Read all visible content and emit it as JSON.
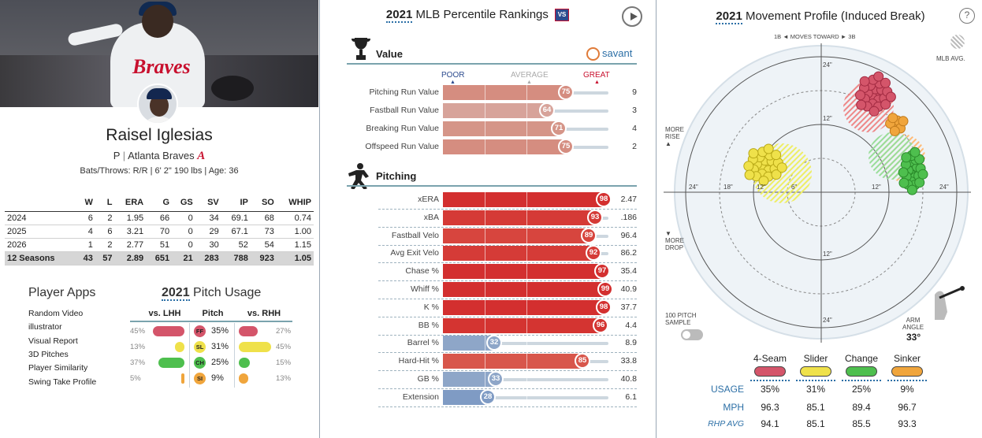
{
  "player": {
    "name": "Raisel Iglesias",
    "position": "P",
    "sep": "|",
    "team": "Atlanta Braves",
    "team_logo_text": "A",
    "photo_wordmark": "Braves",
    "bio": "Bats/Throws: R/R | 6' 2\" 190 lbs | Age: 36"
  },
  "stats_table": {
    "headers": [
      "",
      "W",
      "L",
      "ERA",
      "G",
      "GS",
      "SV",
      "IP",
      "SO",
      "WHIP"
    ],
    "rows": [
      [
        "2024",
        "6",
        "2",
        "1.95",
        "66",
        "0",
        "34",
        "69.1",
        "68",
        "0.74"
      ],
      [
        "2025",
        "4",
        "6",
        "3.21",
        "70",
        "0",
        "29",
        "67.1",
        "73",
        "1.00"
      ],
      [
        "2026",
        "1",
        "2",
        "2.77",
        "51",
        "0",
        "30",
        "52",
        "54",
        "1.15"
      ]
    ],
    "total": [
      "12 Seasons",
      "43",
      "57",
      "2.89",
      "651",
      "21",
      "283",
      "788",
      "923",
      "1.05"
    ]
  },
  "player_apps": {
    "title": "Player Apps",
    "items": [
      "Random Video",
      "illustrator",
      "Visual Report",
      "3D Pitches",
      "Player Similarity",
      "Swing Take Profile"
    ]
  },
  "pitch_usage": {
    "year": "2021",
    "title": "Pitch Usage",
    "col_lhh": "vs. LHH",
    "col_pitch": "Pitch",
    "col_rhh": "vs. RHH",
    "rows": [
      {
        "code": "FF",
        "color": "#d4556a",
        "lhh_label": "45%",
        "lhh": 45,
        "all_label": "35%",
        "rhh_label": "27%",
        "rhh": 27
      },
      {
        "code": "SL",
        "color": "#efe14a",
        "lhh_label": "13%",
        "lhh": 13,
        "all_label": "31%",
        "rhh_label": "45%",
        "rhh": 45
      },
      {
        "code": "CH",
        "color": "#4ebf4e",
        "lhh_label": "37%",
        "lhh": 37,
        "all_label": "25%",
        "rhh_label": "15%",
        "rhh": 15
      },
      {
        "code": "SI",
        "color": "#f0a53c",
        "lhh_label": "5%",
        "lhh": 5,
        "all_label": "9%",
        "rhh_label": "13%",
        "rhh": 13
      }
    ]
  },
  "rankings": {
    "year": "2021",
    "title": "MLB Percentile Rankings",
    "scale": {
      "poor": "POOR",
      "average": "AVERAGE",
      "great": "GREAT"
    },
    "savant": "savant",
    "value_section": {
      "title": "Value",
      "rows": [
        {
          "label": "Pitching Run Value",
          "pct": 75,
          "value": "9",
          "color": "#d58d80"
        },
        {
          "label": "Fastball Run Value",
          "pct": 64,
          "value": "3",
          "color": "#d7a39a"
        },
        {
          "label": "Breaking Run Value",
          "pct": 71,
          "value": "4",
          "color": "#d59588"
        },
        {
          "label": "Offspeed Run Value",
          "pct": 75,
          "value": "2",
          "color": "#d58d80"
        }
      ]
    },
    "pitching_section": {
      "title": "Pitching",
      "rows": [
        {
          "label": "xERA",
          "pct": 98,
          "value": "2.47",
          "color": "#d32f2f"
        },
        {
          "label": "xBA",
          "pct": 93,
          "value": ".186",
          "color": "#d53a36"
        },
        {
          "label": "Fastball Velo",
          "pct": 89,
          "value": "96.4",
          "color": "#d7453e"
        },
        {
          "label": "Avg Exit Velo",
          "pct": 92,
          "value": "86.2",
          "color": "#d53b37"
        },
        {
          "label": "Chase %",
          "pct": 97,
          "value": "35.4",
          "color": "#d32f2f"
        },
        {
          "label": "Whiff %",
          "pct": 99,
          "value": "40.9",
          "color": "#d32f2f"
        },
        {
          "label": "K %",
          "pct": 98,
          "value": "37.7",
          "color": "#d32f2f"
        },
        {
          "label": "BB %",
          "pct": 96,
          "value": "4.4",
          "color": "#d43431"
        },
        {
          "label": "Barrel %",
          "pct": 32,
          "value": "8.9",
          "color": "#8ea6c8"
        },
        {
          "label": "Hard-Hit %",
          "pct": 85,
          "value": "33.8",
          "color": "#d8564b"
        },
        {
          "label": "GB %",
          "pct": 33,
          "value": "40.8",
          "color": "#8ea6c8"
        },
        {
          "label": "Extension",
          "pct": 28,
          "value": "6.1",
          "color": "#7f9bc4"
        }
      ]
    }
  },
  "movement": {
    "year": "2021",
    "title": "Movement Profile (Induced Break)",
    "help": "?",
    "direction": "1B ◄ MOVES TOWARD ► 3B",
    "mlb_avg": "MLB AVG.",
    "more_rise": [
      "MORE",
      "RISE"
    ],
    "more_drop": [
      "MORE",
      "DROP"
    ],
    "ring_labels": {
      "top24": "24\"",
      "top12": "12\"",
      "bot12": "12\"",
      "bot24": "24\"",
      "l24": "24\"",
      "l18": "18\"",
      "l12": "12\"",
      "l6": "6\"",
      "r12": "12\"",
      "r24": "24\""
    },
    "sample": [
      "100 PITCH",
      "SAMPLE"
    ],
    "arm_angle_label": [
      "ARM",
      "ANGLE"
    ],
    "arm_angle": "33°",
    "pitches": [
      {
        "name": "4-Seam",
        "color": "#d4556a",
        "usage": "35%",
        "mph": "96.3",
        "rhp_avg": "94.1"
      },
      {
        "name": "Slider",
        "color": "#efe14a",
        "usage": "31%",
        "mph": "85.1",
        "rhp_avg": "85.1"
      },
      {
        "name": "Change",
        "color": "#4ebf4e",
        "usage": "25%",
        "mph": "89.4",
        "rhp_avg": "85.5"
      },
      {
        "name": "Sinker",
        "color": "#f0a53c",
        "usage": "9%",
        "mph": "96.7",
        "rhp_avg": "93.3"
      }
    ],
    "row_labels": {
      "usage": "USAGE",
      "mph": "MPH",
      "rhp_avg": "RHP AVG"
    }
  }
}
